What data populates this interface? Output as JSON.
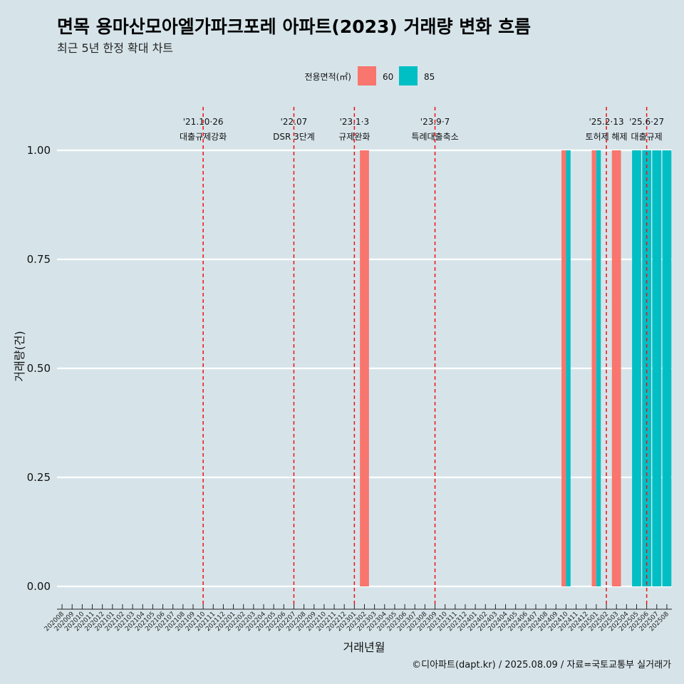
{
  "title": "면목 용마산모아엘가파크포레 아파트(2023) 거래량 변화 흐름",
  "subtitle": "최근 5년 한정 확대 차트",
  "caption": "©디아파트(dapt.kr) / 2025.08.09 / 자료=국토교통부 실거래가",
  "chart_data": {
    "type": "bar",
    "xlabel": "거래년월",
    "ylabel": "거래량(건)",
    "ylim": [
      0,
      1
    ],
    "y_ticks": [
      "0.00",
      "0.25",
      "0.50",
      "0.75",
      "1.00"
    ],
    "y_tick_values": [
      0,
      0.25,
      0.5,
      0.75,
      1.0
    ],
    "legend": {
      "title": "전용면적(㎡)",
      "position": "top"
    },
    "categories": [
      "202008",
      "202009",
      "202010",
      "202011",
      "202012",
      "202101",
      "202102",
      "202103",
      "202104",
      "202105",
      "202106",
      "202107",
      "202108",
      "202109",
      "202110",
      "202111",
      "202112",
      "202201",
      "202202",
      "202203",
      "202204",
      "202205",
      "202206",
      "202207",
      "202208",
      "202209",
      "202210",
      "202211",
      "202212",
      "202301",
      "202302",
      "202303",
      "202304",
      "202305",
      "202306",
      "202307",
      "202308",
      "202309",
      "202310",
      "202311",
      "202312",
      "202401",
      "202402",
      "202403",
      "202404",
      "202405",
      "202406",
      "202407",
      "202408",
      "202409",
      "202410",
      "202411",
      "202412",
      "202501",
      "202502",
      "202503",
      "202504",
      "202505",
      "202506",
      "202507",
      "202508"
    ],
    "series": [
      {
        "name": "60",
        "color": "#f8766d",
        "values": [
          0,
          0,
          0,
          0,
          0,
          0,
          0,
          0,
          0,
          0,
          0,
          0,
          0,
          0,
          0,
          0,
          0,
          0,
          0,
          0,
          0,
          0,
          0,
          0,
          0,
          0,
          0,
          0,
          0,
          0,
          1,
          0,
          0,
          0,
          0,
          0,
          0,
          0,
          0,
          0,
          0,
          0,
          0,
          0,
          0,
          0,
          0,
          0,
          0,
          0,
          1,
          0,
          0,
          1,
          0,
          1,
          0,
          0,
          0,
          0,
          0
        ]
      },
      {
        "name": "85",
        "color": "#00bfc4",
        "values": [
          0,
          0,
          0,
          0,
          0,
          0,
          0,
          0,
          0,
          0,
          0,
          0,
          0,
          0,
          0,
          0,
          0,
          0,
          0,
          0,
          0,
          0,
          0,
          0,
          0,
          0,
          0,
          0,
          0,
          0,
          0,
          0,
          0,
          0,
          0,
          0,
          0,
          0,
          0,
          0,
          0,
          0,
          0,
          0,
          0,
          0,
          0,
          0,
          0,
          0,
          1,
          0,
          0,
          1,
          0,
          0,
          0,
          1,
          1,
          1,
          1
        ]
      }
    ],
    "events": [
      {
        "date": "'21.10·26",
        "label": "대출규제강화",
        "month": "202110"
      },
      {
        "date": "'22.07",
        "label": "DSR 3단계",
        "month": "202207"
      },
      {
        "date": "'23.1·3",
        "label": "규제완화",
        "month": "202301"
      },
      {
        "date": "'23.9·7",
        "label": "특례대출축소",
        "month": "202309"
      },
      {
        "date": "'25.2·13",
        "label": "토허제 해제",
        "month": "202502"
      },
      {
        "date": "'25.6·27",
        "label": "대출규제",
        "month": "202506"
      }
    ]
  }
}
